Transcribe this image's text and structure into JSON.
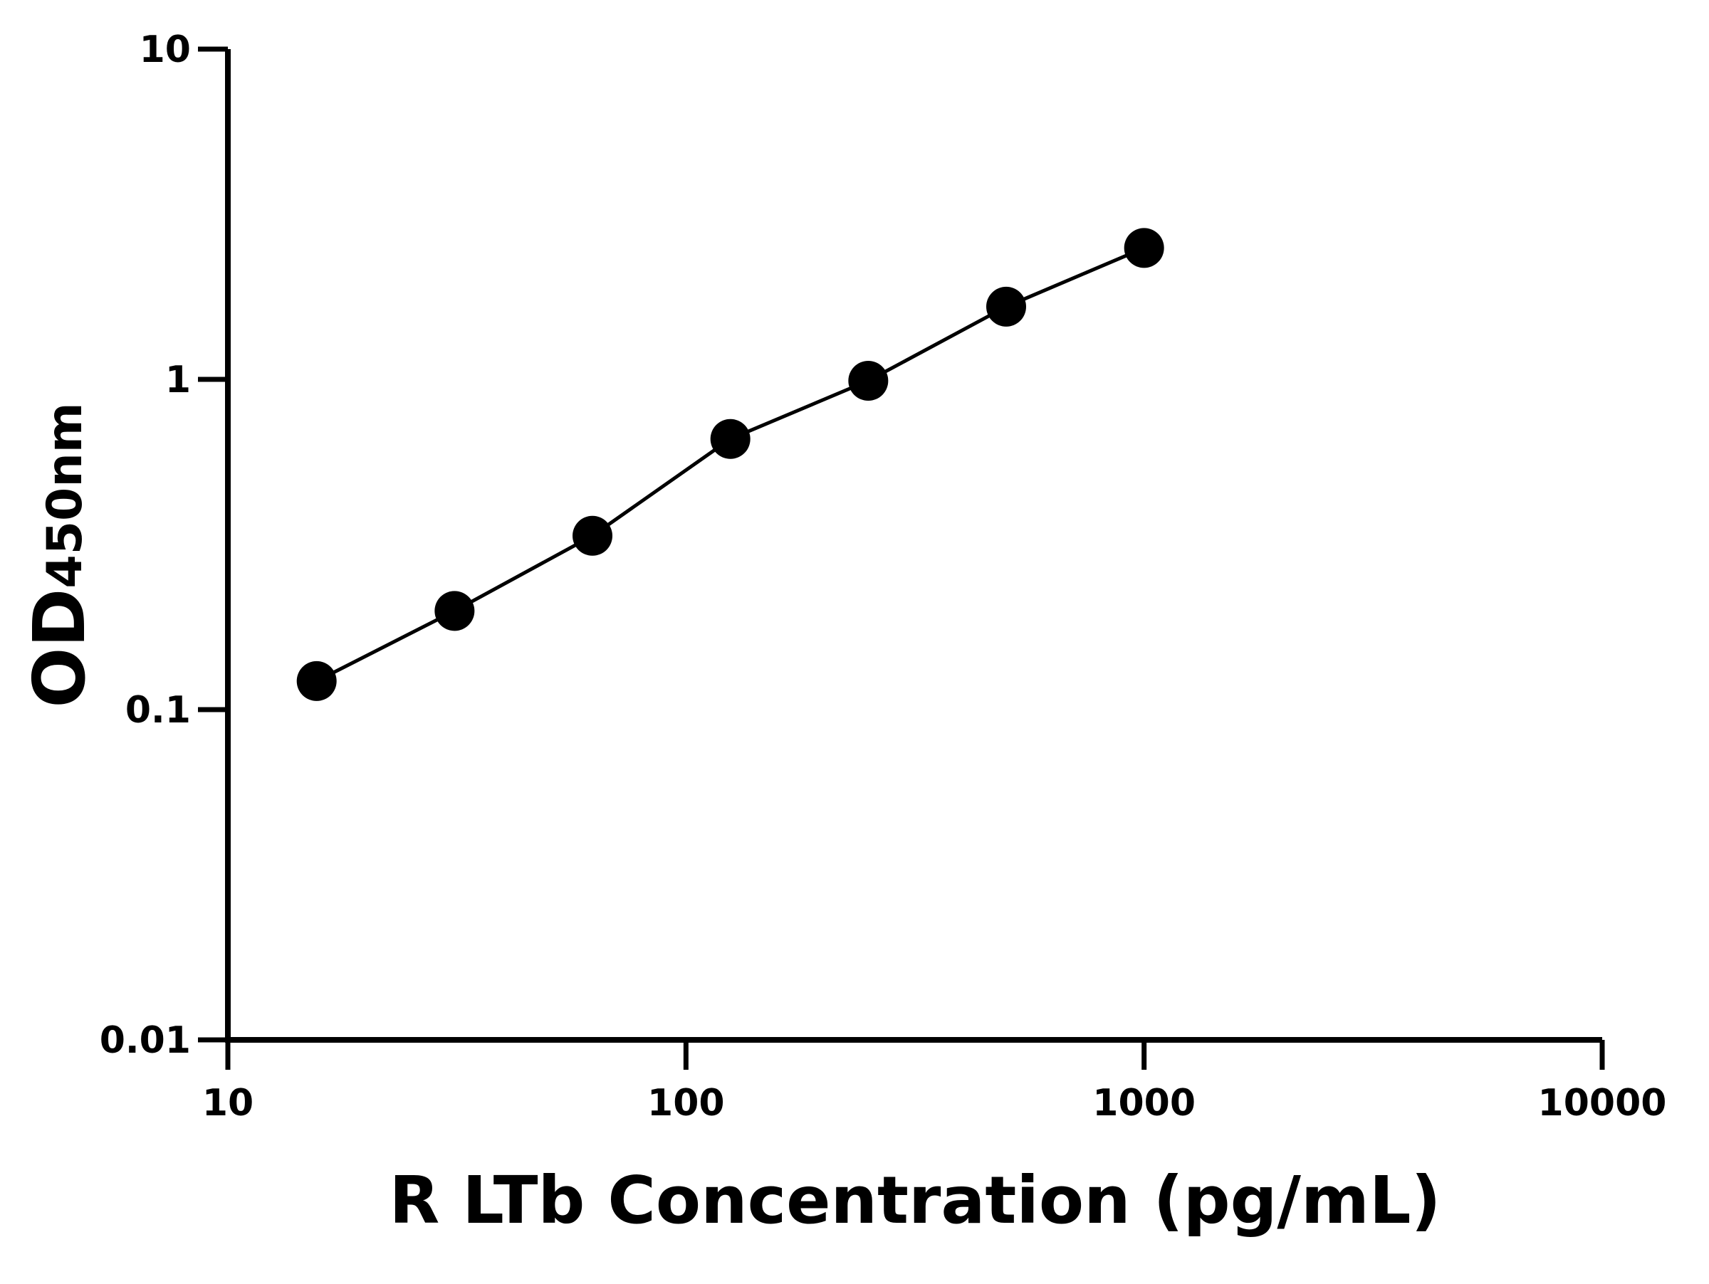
{
  "chart_data": {
    "type": "line",
    "xlabel": "R LTb Concentration (pg/mL)",
    "ylabel": "OD",
    "ylabel_subscript": "450nm",
    "x": [
      15.625,
      31.25,
      62.5,
      125,
      250,
      500,
      1000
    ],
    "series": [
      {
        "color": "#000000",
        "values": [
          0.122,
          0.199,
          0.336,
          0.66,
          0.99,
          1.66,
          2.5
        ]
      }
    ],
    "xscale": "log",
    "yscale": "log",
    "xlim": [
      10,
      10000
    ],
    "xticks": [
      10,
      100,
      1000,
      10000
    ],
    "ylim": [
      0.01,
      10
    ],
    "yticks": [
      0.01,
      0.1,
      1,
      10
    ],
    "markers": true
  }
}
